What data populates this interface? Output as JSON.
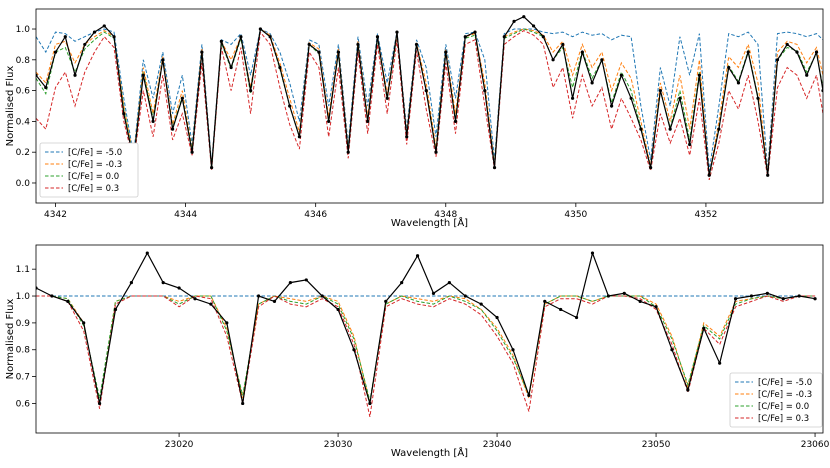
{
  "chart_data": [
    {
      "type": "line",
      "xlabel": "Wavelength [Å]",
      "ylabel": "Normalised Flux",
      "xlim": [
        4341.7,
        4353.8
      ],
      "ylim": [
        -0.13,
        1.13
      ],
      "xticks": [
        4342,
        4344,
        4346,
        4348,
        4350,
        4352
      ],
      "yticks": [
        0.0,
        0.2,
        0.4,
        0.6,
        0.8,
        1.0
      ],
      "legend_position": "lower-left",
      "observed": {
        "x": [
          4341.7,
          4341.85,
          4342.0,
          4342.15,
          4342.3,
          4342.45,
          4342.6,
          4342.75,
          4342.9,
          4343.05,
          4343.2,
          4343.35,
          4343.5,
          4343.65,
          4343.8,
          4343.95,
          4344.1,
          4344.25,
          4344.4,
          4344.55,
          4344.7,
          4344.85,
          4345.0,
          4345.15,
          4345.3,
          4345.45,
          4345.6,
          4345.75,
          4345.9,
          4346.05,
          4346.2,
          4346.35,
          4346.5,
          4346.65,
          4346.8,
          4346.95,
          4347.1,
          4347.25,
          4347.4,
          4347.55,
          4347.7,
          4347.85,
          4348.0,
          4348.15,
          4348.3,
          4348.45,
          4348.6,
          4348.75,
          4348.9,
          4349.05,
          4349.2,
          4349.35,
          4349.5,
          4349.65,
          4349.8,
          4349.95,
          4350.1,
          4350.25,
          4350.4,
          4350.55,
          4350.7,
          4350.85,
          4351.0,
          4351.15,
          4351.3,
          4351.45,
          4351.6,
          4351.75,
          4351.9,
          4352.05,
          4352.2,
          4352.35,
          4352.5,
          4352.65,
          4352.8,
          4352.95,
          4353.1,
          4353.25,
          4353.4,
          4353.55,
          4353.7,
          4353.8
        ],
        "y": [
          0.7,
          0.62,
          0.85,
          0.95,
          0.7,
          0.9,
          0.98,
          1.02,
          0.95,
          0.45,
          0.15,
          0.7,
          0.4,
          0.8,
          0.35,
          0.55,
          0.2,
          0.85,
          0.1,
          0.92,
          0.75,
          0.95,
          0.6,
          1.0,
          0.95,
          0.75,
          0.5,
          0.3,
          0.9,
          0.85,
          0.4,
          0.85,
          0.2,
          0.9,
          0.4,
          0.95,
          0.55,
          0.98,
          0.3,
          0.9,
          0.6,
          0.2,
          0.85,
          0.4,
          0.95,
          0.98,
          0.6,
          0.1,
          0.95,
          1.05,
          1.08,
          1.02,
          0.95,
          0.8,
          0.9,
          0.55,
          0.85,
          0.65,
          0.8,
          0.5,
          0.7,
          0.55,
          0.35,
          0.1,
          0.6,
          0.35,
          0.55,
          0.25,
          0.7,
          0.05,
          0.35,
          0.75,
          0.65,
          0.85,
          0.55,
          0.05,
          0.8,
          0.9,
          0.85,
          0.7,
          0.85,
          0.6
        ]
      },
      "series": [
        {
          "name": "[C/Fe] = -5.0",
          "color": "#1f77b4",
          "y": [
            0.95,
            0.85,
            0.98,
            0.97,
            0.92,
            0.95,
            0.98,
            1.0,
            0.98,
            0.55,
            0.18,
            0.8,
            0.55,
            0.85,
            0.45,
            0.7,
            0.25,
            0.9,
            0.12,
            0.93,
            0.9,
            0.97,
            0.7,
            1.0,
            0.97,
            0.85,
            0.65,
            0.4,
            0.93,
            0.9,
            0.5,
            0.9,
            0.25,
            0.95,
            0.5,
            0.97,
            0.65,
            0.98,
            0.35,
            0.93,
            0.75,
            0.3,
            0.9,
            0.55,
            0.97,
            0.98,
            0.8,
            0.15,
            0.97,
            1.0,
            1.0,
            1.0,
            0.98,
            0.97,
            0.98,
            0.95,
            0.98,
            0.96,
            0.97,
            0.93,
            0.96,
            0.95,
            0.5,
            0.15,
            0.75,
            0.5,
            0.95,
            0.7,
            0.97,
            0.08,
            0.5,
            0.97,
            0.95,
            0.98,
            0.9,
            0.08,
            0.97,
            0.98,
            0.97,
            0.95,
            0.97,
            0.93
          ]
        },
        {
          "name": "[C/Fe] = -0.3",
          "color": "#ff7f0e",
          "y": [
            0.72,
            0.65,
            0.9,
            0.92,
            0.78,
            0.9,
            0.95,
            0.99,
            0.95,
            0.5,
            0.16,
            0.75,
            0.45,
            0.82,
            0.38,
            0.6,
            0.22,
            0.87,
            0.1,
            0.92,
            0.8,
            0.95,
            0.62,
            1.0,
            0.96,
            0.78,
            0.55,
            0.33,
            0.91,
            0.87,
            0.43,
            0.87,
            0.22,
            0.92,
            0.43,
            0.95,
            0.58,
            0.97,
            0.32,
            0.91,
            0.65,
            0.23,
            0.87,
            0.45,
            0.95,
            0.97,
            0.65,
            0.12,
            0.95,
            0.98,
            1.0,
            0.99,
            0.96,
            0.85,
            0.92,
            0.7,
            0.9,
            0.75,
            0.85,
            0.6,
            0.78,
            0.68,
            0.4,
            0.11,
            0.65,
            0.4,
            0.7,
            0.35,
            0.8,
            0.05,
            0.4,
            0.82,
            0.75,
            0.9,
            0.65,
            0.06,
            0.85,
            0.92,
            0.9,
            0.78,
            0.88,
            0.7
          ]
        },
        {
          "name": "[C/Fe] = 0.0",
          "color": "#2ca02c",
          "y": [
            0.68,
            0.58,
            0.85,
            0.88,
            0.72,
            0.87,
            0.93,
            0.98,
            0.94,
            0.48,
            0.15,
            0.72,
            0.42,
            0.8,
            0.36,
            0.56,
            0.21,
            0.85,
            0.09,
            0.91,
            0.74,
            0.94,
            0.58,
            1.0,
            0.95,
            0.74,
            0.5,
            0.3,
            0.9,
            0.84,
            0.4,
            0.84,
            0.2,
            0.9,
            0.4,
            0.94,
            0.54,
            0.96,
            0.3,
            0.9,
            0.6,
            0.21,
            0.85,
            0.41,
            0.94,
            0.96,
            0.6,
            0.11,
            0.94,
            0.97,
            1.0,
            0.98,
            0.95,
            0.8,
            0.88,
            0.62,
            0.86,
            0.68,
            0.8,
            0.52,
            0.72,
            0.6,
            0.36,
            0.1,
            0.6,
            0.36,
            0.6,
            0.28,
            0.72,
            0.04,
            0.36,
            0.76,
            0.66,
            0.86,
            0.56,
            0.05,
            0.8,
            0.88,
            0.86,
            0.72,
            0.84,
            0.62
          ]
        },
        {
          "name": "[C/Fe] = 0.3",
          "color": "#d62728",
          "y": [
            0.42,
            0.35,
            0.62,
            0.72,
            0.5,
            0.72,
            0.85,
            0.95,
            0.88,
            0.4,
            0.14,
            0.6,
            0.3,
            0.7,
            0.28,
            0.45,
            0.18,
            0.78,
            0.08,
            0.88,
            0.6,
            0.88,
            0.45,
            0.98,
            0.9,
            0.62,
            0.38,
            0.22,
            0.85,
            0.75,
            0.3,
            0.75,
            0.16,
            0.85,
            0.32,
            0.9,
            0.45,
            0.93,
            0.25,
            0.86,
            0.48,
            0.17,
            0.78,
            0.32,
            0.9,
            0.93,
            0.5,
            0.09,
            0.9,
            0.95,
            0.99,
            0.96,
            0.9,
            0.62,
            0.75,
            0.42,
            0.7,
            0.5,
            0.62,
            0.35,
            0.55,
            0.42,
            0.28,
            0.08,
            0.45,
            0.26,
            0.42,
            0.18,
            0.55,
            0.02,
            0.26,
            0.6,
            0.48,
            0.7,
            0.4,
            0.04,
            0.62,
            0.75,
            0.7,
            0.55,
            0.7,
            0.45
          ]
        }
      ]
    },
    {
      "type": "line",
      "xlabel": "Wavelength [Å]",
      "ylabel": "Normalised Flux",
      "xlim": [
        23011,
        23060.5
      ],
      "ylim": [
        0.49,
        1.19
      ],
      "xticks": [
        23020,
        23030,
        23040,
        23050,
        23060
      ],
      "yticks": [
        0.6,
        0.7,
        0.8,
        0.9,
        1.0,
        1.1
      ],
      "legend_position": "lower-right",
      "observed": {
        "x": [
          23011,
          23012,
          23013,
          23014,
          23015,
          23016,
          23017,
          23018,
          23019,
          23020,
          23021,
          23022,
          23023,
          23024,
          23025,
          23026,
          23027,
          23028,
          23029,
          23030,
          23031,
          23032,
          23033,
          23034,
          23035,
          23036,
          23037,
          23038,
          23039,
          23040,
          23041,
          23042,
          23043,
          23044,
          23045,
          23046,
          23047,
          23048,
          23049,
          23050,
          23051,
          23052,
          23053,
          23054,
          23055,
          23056,
          23057,
          23058,
          23059,
          23060
        ],
        "y": [
          1.03,
          1.0,
          0.98,
          0.9,
          0.6,
          0.95,
          1.05,
          1.16,
          1.05,
          1.03,
          0.99,
          0.97,
          0.9,
          0.6,
          1.0,
          0.98,
          1.05,
          1.06,
          1.0,
          0.95,
          0.8,
          0.6,
          0.98,
          1.05,
          1.15,
          1.01,
          1.05,
          1.0,
          0.97,
          0.92,
          0.8,
          0.63,
          0.98,
          0.95,
          0.92,
          1.16,
          1.0,
          1.01,
          0.98,
          0.96,
          0.8,
          0.65,
          0.88,
          0.75,
          0.99,
          1.0,
          1.01,
          0.99,
          1.0,
          0.99
        ]
      },
      "series": [
        {
          "name": "[C/Fe] = -5.0",
          "color": "#1f77b4",
          "y": [
            1.0,
            1.0,
            1.0,
            1.0,
            1.0,
            1.0,
            1.0,
            1.0,
            1.0,
            1.0,
            1.0,
            1.0,
            1.0,
            1.0,
            1.0,
            1.0,
            1.0,
            1.0,
            1.0,
            1.0,
            1.0,
            1.0,
            1.0,
            1.0,
            1.0,
            1.0,
            1.0,
            1.0,
            1.0,
            1.0,
            1.0,
            1.0,
            1.0,
            1.0,
            1.0,
            1.0,
            1.0,
            1.0,
            1.0,
            1.0,
            1.0,
            1.0,
            1.0,
            1.0,
            1.0,
            1.0,
            1.0,
            1.0,
            1.0,
            1.0
          ]
        },
        {
          "name": "[C/Fe] = -0.3",
          "color": "#ff7f0e",
          "y": [
            1.0,
            1.0,
            0.99,
            0.9,
            0.6,
            0.98,
            1.0,
            1.0,
            1.0,
            0.98,
            1.0,
            1.0,
            0.88,
            0.62,
            0.97,
            1.0,
            0.99,
            0.98,
            1.0,
            0.98,
            0.85,
            0.6,
            0.97,
            1.0,
            0.99,
            0.98,
            1.0,
            0.99,
            0.95,
            0.88,
            0.78,
            0.62,
            0.97,
            1.0,
            1.0,
            0.98,
            1.0,
            1.0,
            1.0,
            0.97,
            0.85,
            0.66,
            0.9,
            0.85,
            0.98,
            0.99,
            1.0,
            0.99,
            1.0,
            1.0
          ]
        },
        {
          "name": "[C/Fe] = 0.0",
          "color": "#2ca02c",
          "y": [
            1.0,
            1.0,
            0.99,
            0.89,
            0.62,
            0.98,
            1.0,
            1.0,
            1.0,
            0.97,
            1.0,
            1.0,
            0.87,
            0.63,
            0.97,
            1.0,
            0.98,
            0.97,
            1.0,
            0.97,
            0.84,
            0.61,
            0.97,
            1.0,
            0.98,
            0.97,
            1.0,
            0.98,
            0.95,
            0.87,
            0.77,
            0.63,
            0.97,
            1.0,
            1.0,
            0.98,
            1.0,
            1.0,
            1.0,
            0.96,
            0.84,
            0.67,
            0.89,
            0.84,
            0.97,
            0.99,
            1.0,
            0.99,
            1.0,
            1.0
          ]
        },
        {
          "name": "[C/Fe] = 0.3",
          "color": "#d62728",
          "y": [
            1.0,
            1.0,
            0.98,
            0.87,
            0.58,
            0.97,
            1.0,
            1.0,
            1.0,
            0.96,
            1.0,
            0.99,
            0.85,
            0.6,
            0.96,
            1.0,
            0.97,
            0.96,
            0.99,
            0.96,
            0.82,
            0.55,
            0.96,
            0.99,
            0.97,
            0.96,
            0.99,
            0.97,
            0.93,
            0.85,
            0.75,
            0.57,
            0.96,
            0.99,
            0.99,
            0.97,
            1.0,
            1.0,
            0.99,
            0.95,
            0.82,
            0.64,
            0.88,
            0.82,
            0.96,
            0.98,
            1.0,
            0.98,
            1.0,
            1.0
          ]
        }
      ]
    }
  ]
}
